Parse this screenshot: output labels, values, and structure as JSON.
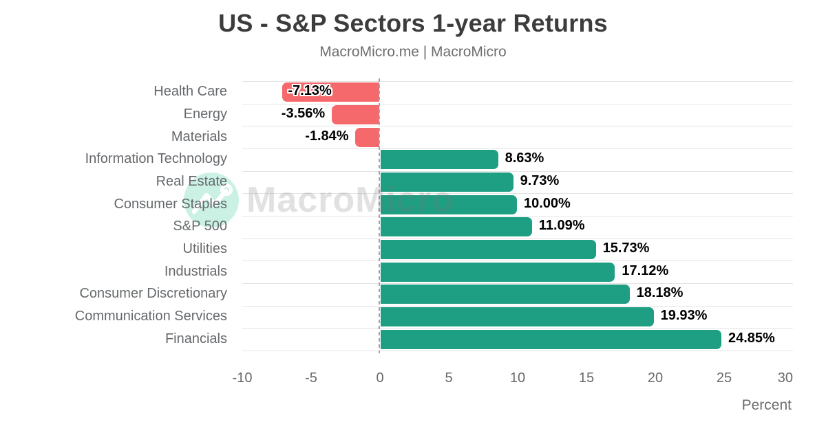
{
  "header": {
    "title": "US - S&P Sectors 1-year Returns",
    "subtitle": "MacroMicro.me | MacroMicro"
  },
  "watermark": {
    "text": "MacroMicro",
    "logo_icon": "line-chart-icon",
    "circle_color": "#CBF1E4"
  },
  "chart_data": {
    "type": "bar",
    "orientation": "horizontal",
    "title": "US - S&P Sectors 1-year Returns",
    "subtitle": "MacroMicro.me | MacroMicro",
    "categories": [
      "Health Care",
      "Energy",
      "Materials",
      "Information Technology",
      "Real Estate",
      "Consumer Staples",
      "S&P 500",
      "Utilities",
      "Industrials",
      "Consumer Discretionary",
      "Communication Services",
      "Financials"
    ],
    "values": [
      -7.13,
      -3.56,
      -1.84,
      8.63,
      9.73,
      10.0,
      11.09,
      15.73,
      17.12,
      18.18,
      19.93,
      24.85
    ],
    "value_labels": [
      "-7.13%",
      "-3.56%",
      "-1.84%",
      "8.63%",
      "9.73%",
      "10.00%",
      "11.09%",
      "15.73%",
      "17.12%",
      "18.18%",
      "19.93%",
      "24.85%"
    ],
    "xlabel": "Percent",
    "ylabel": "",
    "x_ticks": [
      -10,
      -5,
      0,
      5,
      10,
      15,
      20,
      25,
      30
    ],
    "x_tick_labels": [
      "-10",
      "-5",
      "0",
      "5",
      "10",
      "15",
      "20",
      "25",
      "30"
    ],
    "xlim": [
      -10,
      30
    ],
    "grid": true,
    "zero_line": "dashed",
    "legend": false,
    "colors": {
      "positive": "#1E9E82",
      "negative": "#F5696C",
      "gridline": "#E4E4E4",
      "zero_line": "#A3A3A3",
      "category_text": "#66696C",
      "value_text": "#000000"
    }
  }
}
